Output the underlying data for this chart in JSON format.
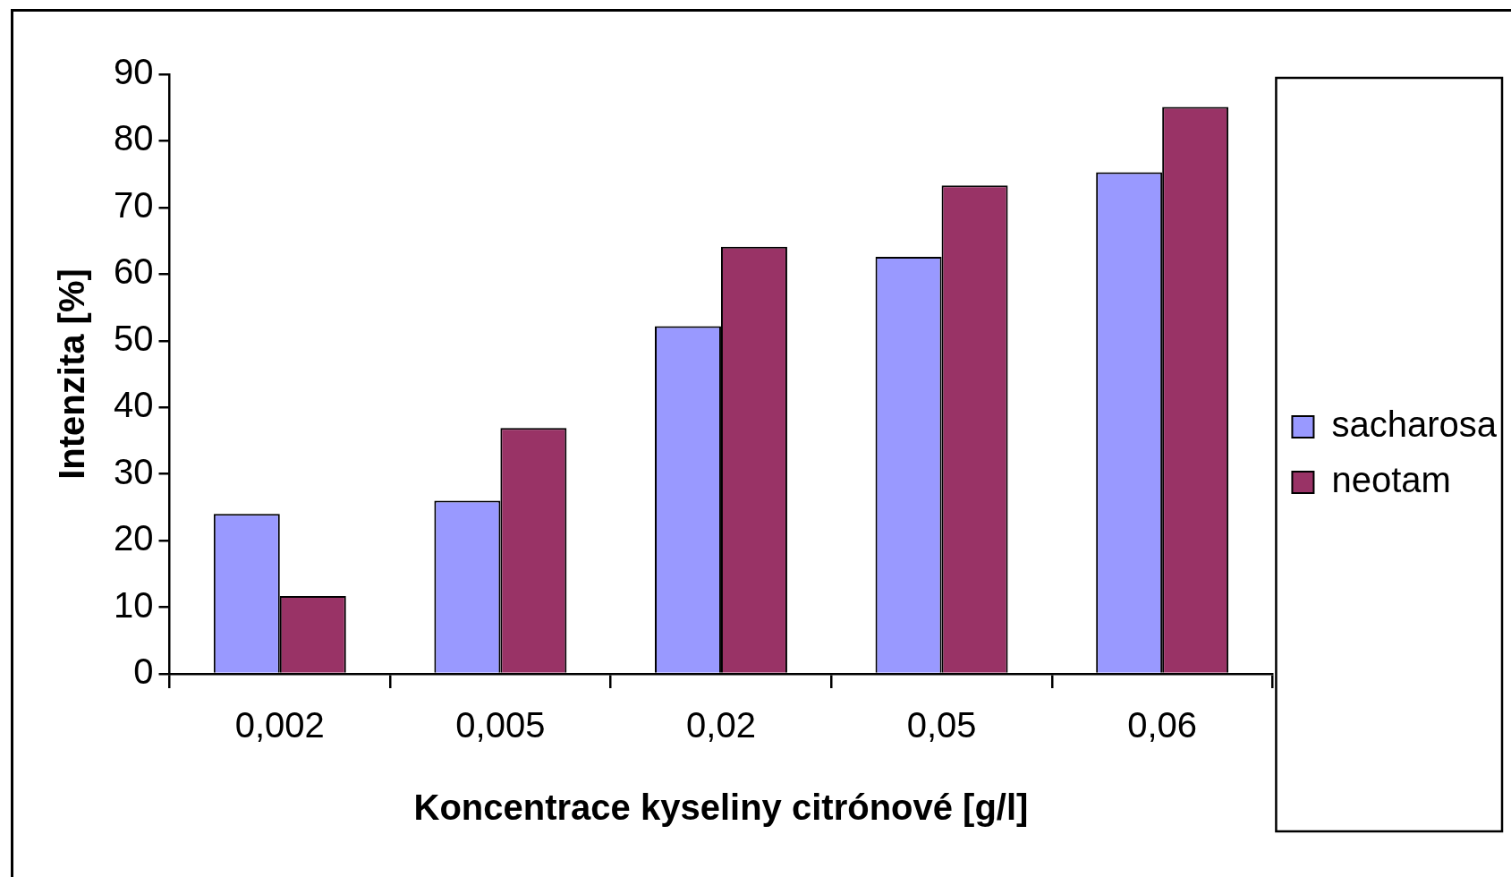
{
  "chart_data": {
    "type": "bar",
    "xlabel": "Koncentrace kyseliny citrónové [g/l]",
    "ylabel": "Intenzita [%]",
    "categories": [
      "0,002",
      "0,005",
      "0,02",
      "0,05",
      "0,06"
    ],
    "series": [
      {
        "name": "sacharosa",
        "color": "#9999ff",
        "values": [
          24,
          26,
          52.2,
          62.6,
          75.3
        ]
      },
      {
        "name": "neotam",
        "color": "#993366",
        "values": [
          11.7,
          36.9,
          64.1,
          73.3,
          85.1
        ]
      }
    ],
    "ylim": [
      0,
      90
    ],
    "yticks": [
      0,
      10,
      20,
      30,
      40,
      50,
      60,
      70,
      80,
      90
    ],
    "grid": false,
    "legend": "right"
  }
}
